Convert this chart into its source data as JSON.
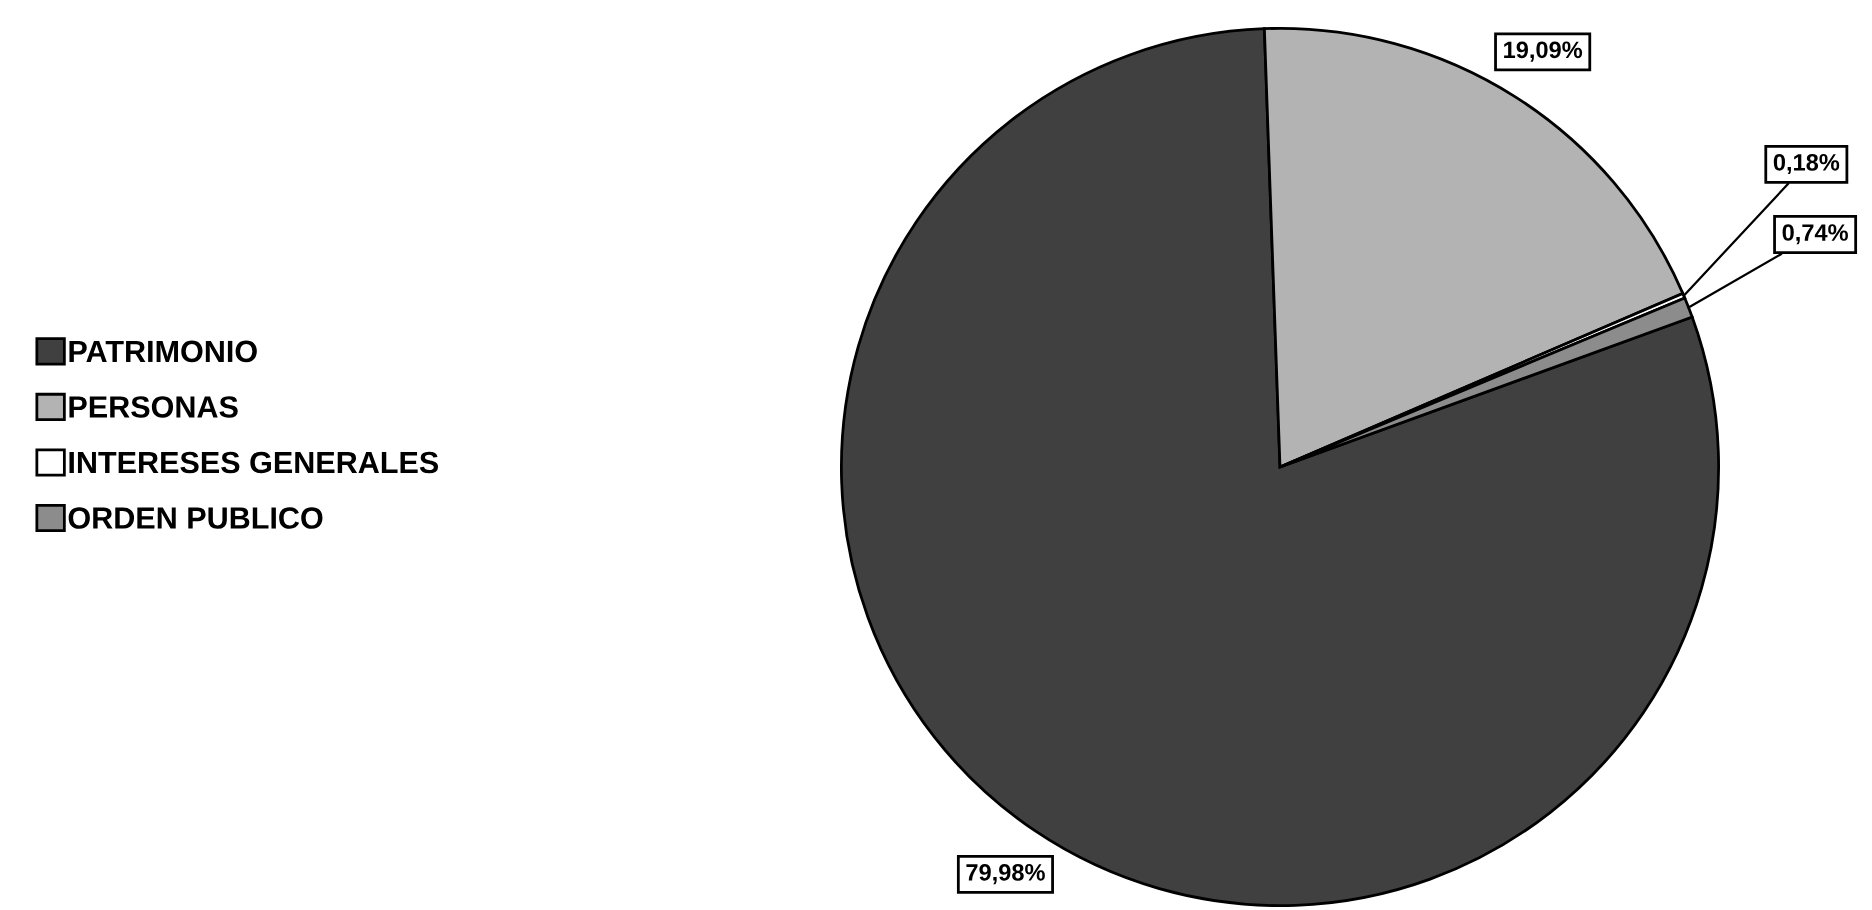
{
  "chart_data": {
    "type": "pie",
    "categories": [
      "PATRIMONIO",
      "PERSONAS",
      "INTERESES GENERALES",
      "ORDEN PUBLICO"
    ],
    "values": [
      79.98,
      19.09,
      0.18,
      0.74
    ],
    "colors": [
      "#404040",
      "#b3b3b3",
      "#ffffff",
      "#8c8c8c"
    ],
    "value_labels": [
      "79,98%",
      "19,09%",
      "0,18%",
      "0,74%"
    ],
    "legend": "left"
  }
}
